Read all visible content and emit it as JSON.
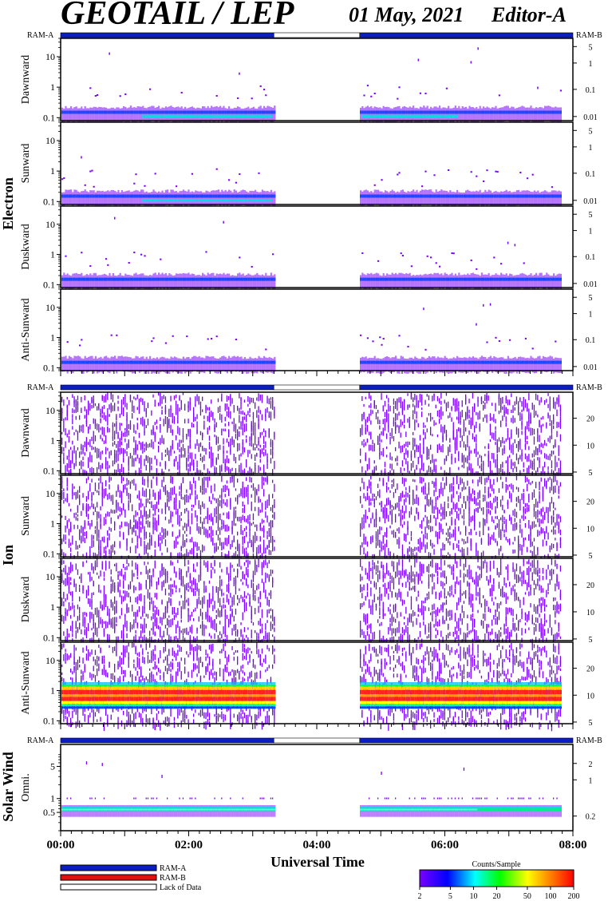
{
  "header": {
    "title": "GEOTAIL / LEP",
    "date": "01 May, 2021",
    "editor": "Editor-A"
  },
  "ram": {
    "left": "RAM-A",
    "right": "RAM-B",
    "segments": [
      {
        "start": 0.0,
        "end": 3.33,
        "mode": "RAM-A"
      },
      {
        "start": 3.33,
        "end": 4.67,
        "mode": "lack"
      },
      {
        "start": 4.67,
        "end": 8.0,
        "mode": "RAM-A"
      }
    ]
  },
  "groups": {
    "electron": "Electron",
    "ion": "Ion",
    "solar_wind": "Solar Wind"
  },
  "panels": {
    "electron": [
      "Dawnward",
      "Sunward",
      "Duskward",
      "Anti-Sunward"
    ],
    "ion": [
      "Dawnward",
      "Sunward",
      "Duskward",
      "Anti-Sunward"
    ],
    "solar_wind": [
      "Omni."
    ]
  },
  "axes": {
    "electron_left_ticks": [
      "10",
      "1",
      "0.1"
    ],
    "electron_right_ticks": [
      "5",
      "1",
      "0.1",
      "0.01"
    ],
    "ion_left_ticks": [
      "10",
      "1",
      "0.1"
    ],
    "ion_right_ticks": [
      "20",
      "10",
      "5"
    ],
    "sw_left_ticks": [
      "5",
      "1",
      "0.5"
    ],
    "sw_right_ticks": [
      "2",
      "1",
      "0.2"
    ],
    "x_title": "Universal Time",
    "x_ticks": [
      "00:00",
      "02:00",
      "04:00",
      "06:00",
      "08:00"
    ]
  },
  "legend": {
    "ram_a": "RAM-A",
    "ram_b": "RAM-B",
    "lack": "Lack of Data",
    "colorbar_title": "Counts/Sample",
    "colorbar_ticks": [
      "2",
      "5",
      "10",
      "20",
      "50",
      "100",
      "200"
    ]
  },
  "colors": {
    "ram_a": "#0b1fbf",
    "ram_b": "#e01010",
    "lack": "#ffffff",
    "scale": [
      "#7a00ff",
      "#0000ff",
      "#00ffff",
      "#00ff00",
      "#ffff00",
      "#ff8000",
      "#ff0000"
    ]
  },
  "chart_data": {
    "type": "heatmap",
    "x_range": [
      "00:00",
      "08:00"
    ],
    "data_gap": [
      "03:20",
      "04:40"
    ],
    "color_scale": {
      "label": "Counts/Sample",
      "min": 2,
      "max": 200,
      "log": true
    },
    "electron": {
      "panels": [
        "Dawnward",
        "Sunward",
        "Duskward",
        "Anti-Sunward"
      ],
      "y_log": true,
      "y_ticks": [
        0.1,
        1,
        10
      ]
    },
    "ion": {
      "panels": [
        "Dawnward",
        "Sunward",
        "Duskward",
        "Anti-Sunward"
      ],
      "y_log": true,
      "y_ticks": [
        0.1,
        1,
        10
      ]
    },
    "solar_wind": {
      "panels": [
        "Omni."
      ],
      "y_log": true,
      "y_ticks": [
        0.5,
        1,
        5
      ]
    }
  }
}
